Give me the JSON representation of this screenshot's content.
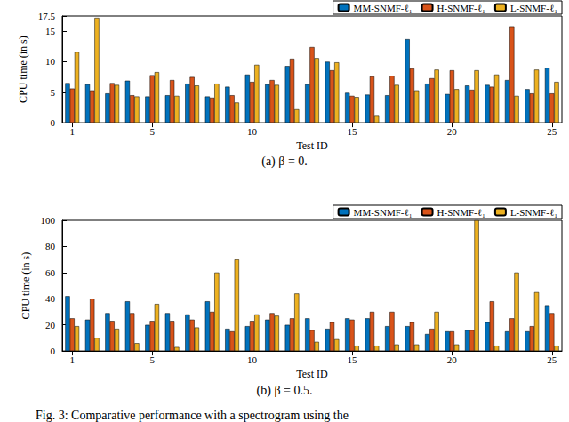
{
  "chart_data": [
    {
      "type": "bar",
      "title": "(a) β = 0.",
      "x_label": "Test ID",
      "y_label": "CPU time (in s)",
      "categories": [
        1,
        null,
        null,
        null,
        5,
        null,
        null,
        null,
        null,
        10,
        null,
        null,
        null,
        null,
        15,
        null,
        null,
        null,
        null,
        20,
        null,
        null,
        null,
        null,
        25
      ],
      "series": [
        {
          "name": "MM-SNMF-ℓ₁",
          "color": "#0072BD",
          "values": [
            6.5,
            6.3,
            4.8,
            6.9,
            4.3,
            4.5,
            6.4,
            4.3,
            5.9,
            7.9,
            6.3,
            9.3,
            6.3,
            10.0,
            4.9,
            4.6,
            4.5,
            13.7,
            6.4,
            4.7,
            6.1,
            6.2,
            7.0,
            5.5,
            9.0
          ]
        },
        {
          "name": "H-SNMF-ℓ₁",
          "color": "#D95319",
          "values": [
            5.6,
            5.3,
            6.5,
            4.5,
            7.8,
            7.0,
            7.5,
            4.1,
            4.5,
            6.7,
            7.0,
            10.5,
            12.4,
            8.6,
            4.4,
            7.6,
            7.7,
            8.9,
            7.3,
            8.6,
            5.4,
            5.9,
            15.8,
            4.8,
            4.8
          ]
        },
        {
          "name": "L-SNMF-ℓ₁",
          "color": "#EDB120",
          "values": [
            11.6,
            17.2,
            6.2,
            4.3,
            8.3,
            4.4,
            6.1,
            6.4,
            3.3,
            9.5,
            6.2,
            2.2,
            10.6,
            9.9,
            4.2,
            1.1,
            6.2,
            5.3,
            8.7,
            5.5,
            8.6,
            7.9,
            4.4,
            8.7,
            6.7
          ]
        }
      ],
      "ylim": [
        0,
        17.5
      ],
      "yticks": [
        0,
        5,
        10,
        15
      ],
      "grid": false,
      "legend": "upper right"
    },
    {
      "type": "bar",
      "title": "(b) β = 0.5.",
      "x_label": "Test ID",
      "y_label": "CPU time (in s)",
      "categories": [
        1,
        null,
        null,
        null,
        5,
        null,
        null,
        null,
        null,
        10,
        null,
        null,
        null,
        null,
        15,
        null,
        null,
        null,
        null,
        20,
        null,
        null,
        null,
        null,
        25
      ],
      "series": [
        {
          "name": "MM-SNMF-ℓ₁",
          "color": "#0072BD",
          "values": [
            42,
            24,
            29,
            38,
            20,
            29,
            28,
            38,
            17,
            19,
            24,
            20,
            25,
            17,
            25,
            25,
            19,
            19,
            13,
            15,
            16,
            22,
            15,
            15,
            35
          ]
        },
        {
          "name": "H-SNMF-ℓ₁",
          "color": "#D95319",
          "values": [
            25,
            40,
            23,
            29,
            23,
            23,
            24,
            30,
            15,
            23,
            29,
            25,
            16,
            22,
            24,
            30,
            30,
            22,
            17,
            15,
            16,
            38,
            25,
            19,
            29
          ]
        },
        {
          "name": "L-SNMF-ℓ₁",
          "color": "#EDB120",
          "values": [
            19,
            10,
            17,
            6,
            36,
            3,
            18,
            60,
            70,
            28,
            27,
            44,
            7,
            9,
            4,
            4,
            5,
            5,
            30,
            5,
            100,
            4,
            60,
            45,
            4
          ]
        }
      ],
      "ylim": [
        0,
        100
      ],
      "yticks": [
        0,
        20,
        40,
        60,
        80,
        100
      ],
      "grid": false,
      "legend": "upper right"
    }
  ],
  "caption": "Fig. 3: Comparative performance with a spectrogram using the"
}
